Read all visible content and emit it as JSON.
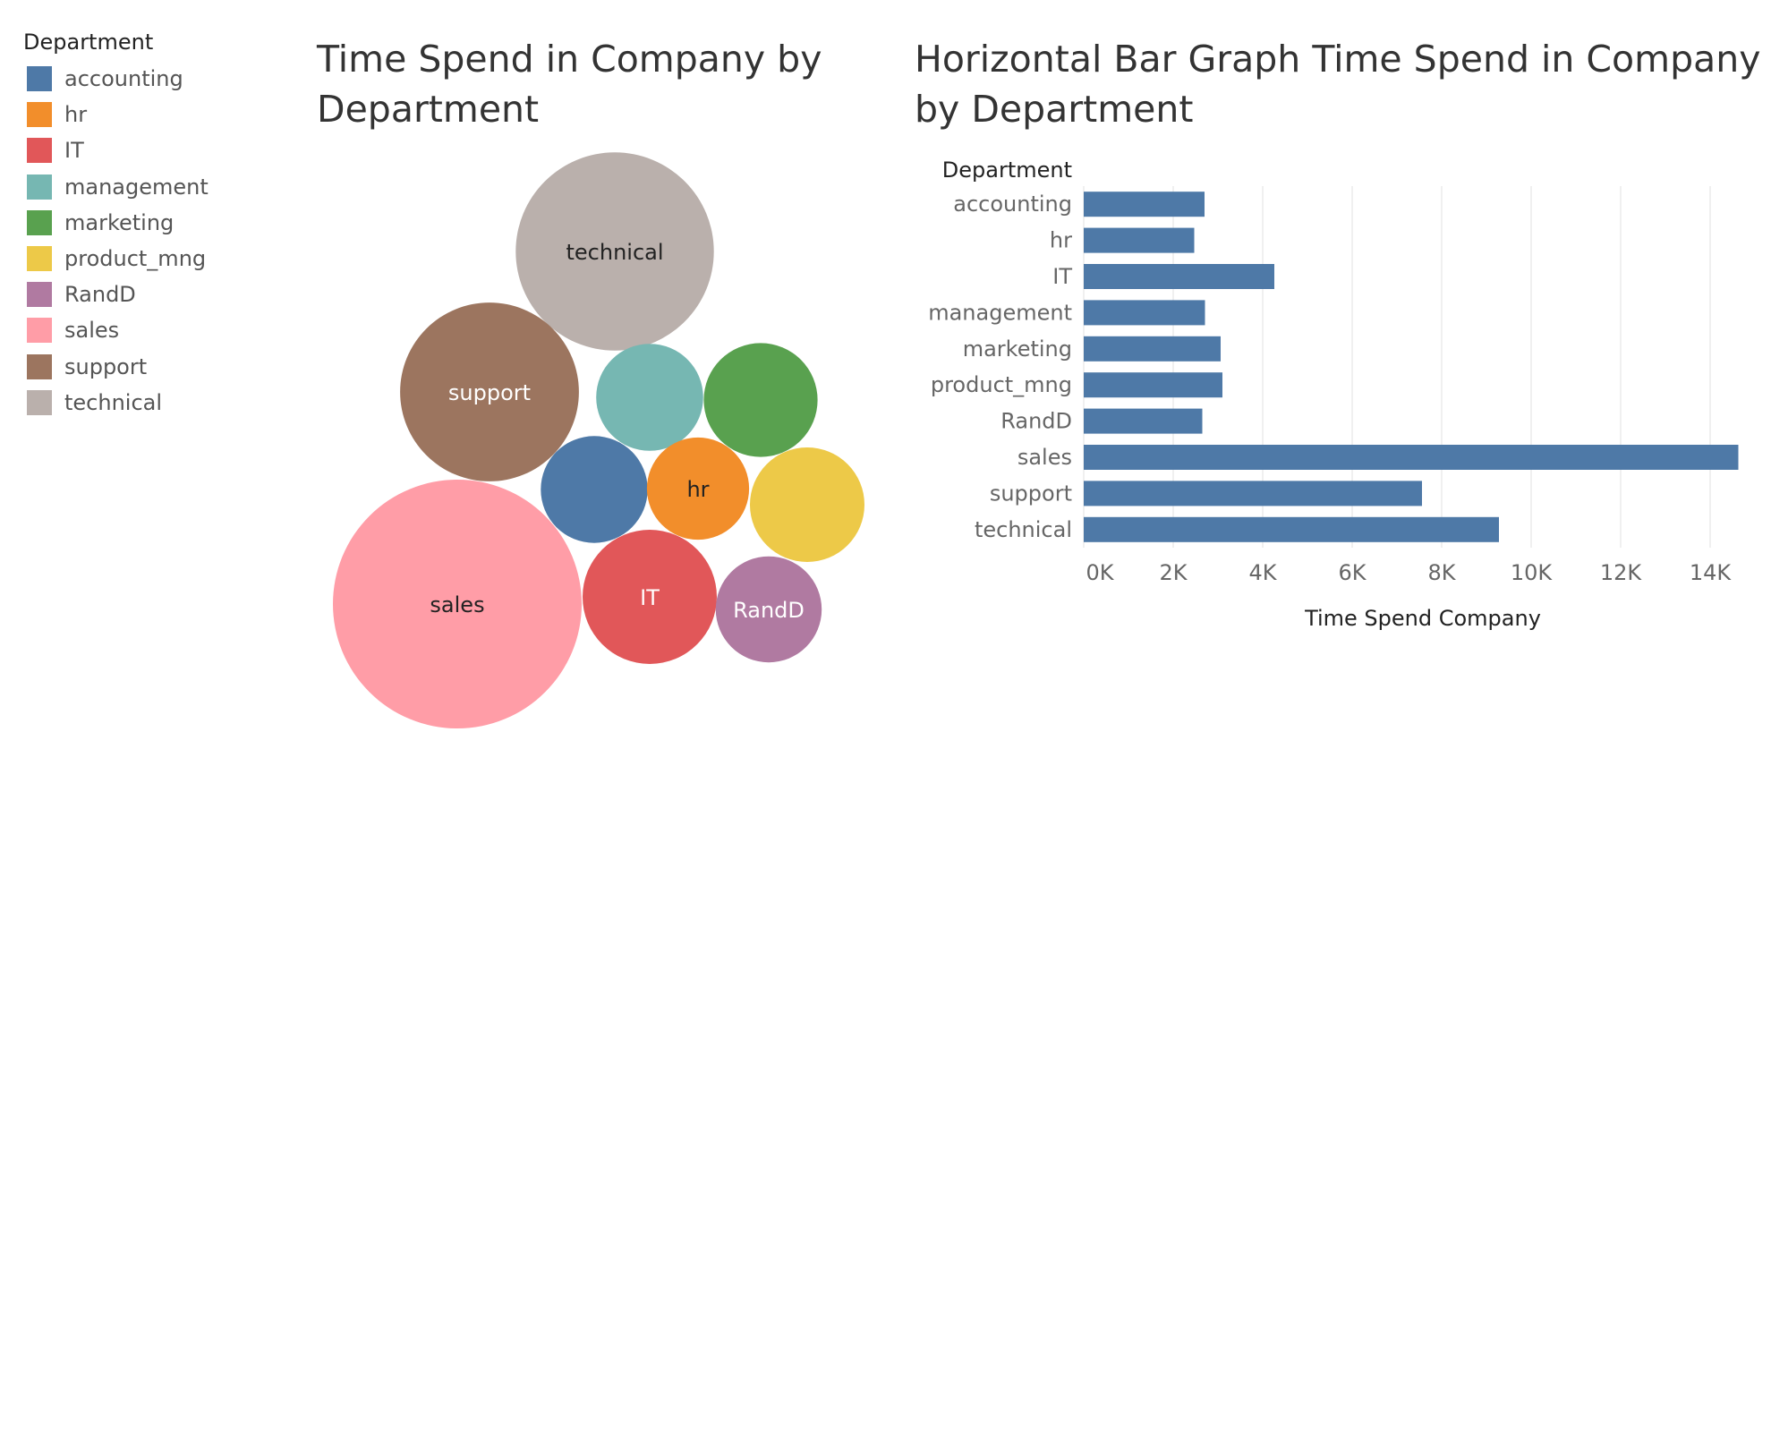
{
  "legend": {
    "title": "Department",
    "items": [
      {
        "label": "accounting",
        "color": "#4e79a7"
      },
      {
        "label": "hr",
        "color": "#f28e2b"
      },
      {
        "label": "IT",
        "color": "#e15759"
      },
      {
        "label": "management",
        "color": "#76b7b2"
      },
      {
        "label": "marketing",
        "color": "#59a14f"
      },
      {
        "label": "product_mng",
        "color": "#edc948"
      },
      {
        "label": "RandD",
        "color": "#b07aa1"
      },
      {
        "label": "sales",
        "color": "#ff9da7"
      },
      {
        "label": "support",
        "color": "#9c755f"
      },
      {
        "label": "technical",
        "color": "#bab0ac"
      }
    ]
  },
  "chart_data": [
    {
      "type": "bubble",
      "title": "Time Spend in Company by Department",
      "size_measure": "Time Spend Company",
      "color_field": "Department",
      "bubbles": [
        {
          "category": "technical",
          "value": 9280,
          "label": "technical",
          "show_label": true,
          "color": "#bab0ac",
          "label_color": "#222222"
        },
        {
          "category": "support",
          "value": 7560,
          "label": "support",
          "show_label": true,
          "color": "#9c755f",
          "label_color": "#ffffff"
        },
        {
          "category": "management",
          "value": 2710,
          "label": "management",
          "show_label": false,
          "color": "#76b7b2",
          "label_color": "#222222"
        },
        {
          "category": "marketing",
          "value": 3060,
          "label": "marketing",
          "show_label": false,
          "color": "#59a14f",
          "label_color": "#ffffff"
        },
        {
          "category": "accounting",
          "value": 2700,
          "label": "accounting",
          "show_label": false,
          "color": "#4e79a7",
          "label_color": "#ffffff"
        },
        {
          "category": "hr",
          "value": 2470,
          "label": "hr",
          "show_label": true,
          "color": "#f28e2b",
          "label_color": "#222222"
        },
        {
          "category": "product_mng",
          "value": 3100,
          "label": "product_mng",
          "show_label": false,
          "color": "#edc948",
          "label_color": "#222222"
        },
        {
          "category": "sales",
          "value": 14630,
          "label": "sales",
          "show_label": true,
          "color": "#ff9da7",
          "label_color": "#222222"
        },
        {
          "category": "IT",
          "value": 4260,
          "label": "IT",
          "show_label": true,
          "color": "#e15759",
          "label_color": "#ffffff"
        },
        {
          "category": "RandD",
          "value": 2650,
          "label": "RandD",
          "show_label": true,
          "color": "#b07aa1",
          "label_color": "#ffffff"
        }
      ]
    },
    {
      "type": "bar",
      "orientation": "horizontal",
      "title": "Horizontal Bar Graph Time Spend in Company by Department",
      "ylabel": "Department",
      "xlabel": "Time Spend Company",
      "categories": [
        "accounting",
        "hr",
        "IT",
        "management",
        "marketing",
        "product_mng",
        "RandD",
        "sales",
        "support",
        "technical"
      ],
      "values": [
        2700,
        2470,
        4260,
        2710,
        3060,
        3100,
        2650,
        14630,
        7560,
        9280
      ],
      "xlim": [
        0,
        15000
      ],
      "xticks": [
        0,
        2000,
        4000,
        6000,
        8000,
        10000,
        12000,
        14000
      ],
      "xtick_labels": [
        "0K",
        "2K",
        "4K",
        "6K",
        "8K",
        "10K",
        "12K",
        "14K"
      ],
      "bar_color": "#4e79a7",
      "grid": true
    }
  ]
}
